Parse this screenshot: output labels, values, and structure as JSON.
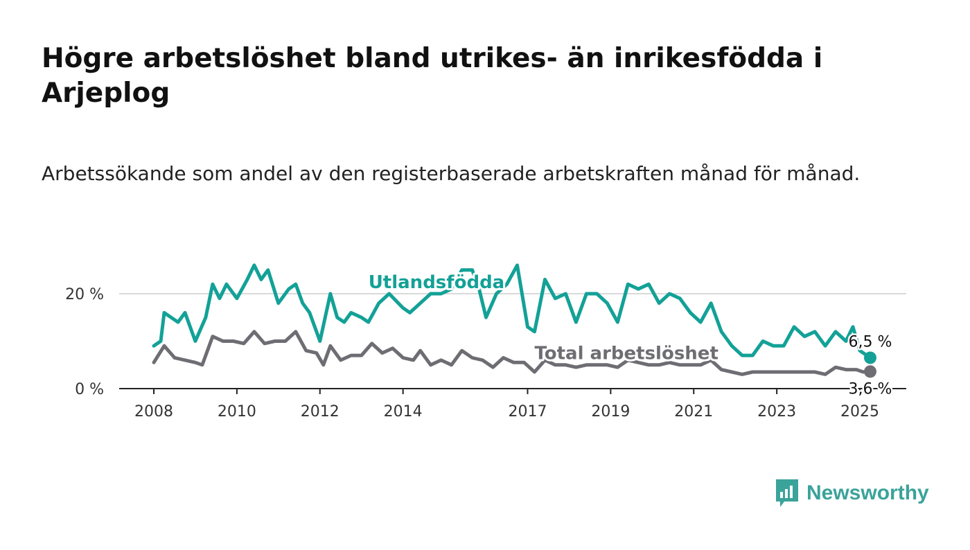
{
  "title": "Högre arbetslöshet bland utrikes- än inrikesfödda i Arjeplog",
  "subtitle": "Arbetssökande som andel av den registerbaserade arbetskraften månad för månad.",
  "brand": {
    "name": "Newsworthy",
    "color": "#3aa39a"
  },
  "chart_data": {
    "type": "line",
    "xlabel": "",
    "ylabel": "",
    "x_range": [
      "2008-01",
      "2025-04"
    ],
    "ylim": [
      0,
      27
    ],
    "y_ticks": [
      {
        "value": 0,
        "label": "0 %"
      },
      {
        "value": 20,
        "label": "20 %"
      }
    ],
    "x_ticks": [
      {
        "x": "2008-01",
        "label": "2008"
      },
      {
        "x": "2010-01",
        "label": "2010"
      },
      {
        "x": "2012-01",
        "label": "2012"
      },
      {
        "x": "2014-01",
        "label": "2014"
      },
      {
        "x": "2017-01",
        "label": "2017"
      },
      {
        "x": "2019-01",
        "label": "2019"
      },
      {
        "x": "2021-01",
        "label": "2021"
      },
      {
        "x": "2023-01",
        "label": "2023"
      },
      {
        "x": "2025-01",
        "label": "2025"
      }
    ],
    "grid": {
      "horizontal": true
    },
    "series": [
      {
        "name": "Utlandsfödda",
        "color": "#13a197",
        "end_label": "6,5 %",
        "points": [
          [
            "2008-01",
            9
          ],
          [
            "2008-03",
            10
          ],
          [
            "2008-04",
            16
          ],
          [
            "2008-06",
            15
          ],
          [
            "2008-08",
            14
          ],
          [
            "2008-10",
            16
          ],
          [
            "2009-01",
            10
          ],
          [
            "2009-04",
            15
          ],
          [
            "2009-06",
            22
          ],
          [
            "2009-08",
            19
          ],
          [
            "2009-10",
            22
          ],
          [
            "2010-01",
            19
          ],
          [
            "2010-04",
            23
          ],
          [
            "2010-06",
            26
          ],
          [
            "2010-08",
            23
          ],
          [
            "2010-10",
            25
          ],
          [
            "2011-01",
            18
          ],
          [
            "2011-04",
            21
          ],
          [
            "2011-06",
            22
          ],
          [
            "2011-08",
            18
          ],
          [
            "2011-10",
            16
          ],
          [
            "2012-01",
            10
          ],
          [
            "2012-04",
            20
          ],
          [
            "2012-06",
            15
          ],
          [
            "2012-08",
            14
          ],
          [
            "2012-10",
            16
          ],
          [
            "2013-01",
            15
          ],
          [
            "2013-03",
            14
          ],
          [
            "2013-06",
            18
          ],
          [
            "2013-09",
            20
          ],
          [
            "2014-01",
            17
          ],
          [
            "2014-03",
            16
          ],
          [
            "2014-06",
            18
          ],
          [
            "2014-09",
            20
          ],
          [
            "2014-12",
            20
          ],
          [
            "2015-03",
            21
          ],
          [
            "2015-06",
            25
          ],
          [
            "2015-09",
            25
          ],
          [
            "2015-11",
            21
          ],
          [
            "2016-01",
            15
          ],
          [
            "2016-04",
            20
          ],
          [
            "2016-07",
            22
          ],
          [
            "2016-10",
            26
          ],
          [
            "2017-01",
            13
          ],
          [
            "2017-03",
            12
          ],
          [
            "2017-06",
            23
          ],
          [
            "2017-09",
            19
          ],
          [
            "2017-12",
            20
          ],
          [
            "2018-03",
            14
          ],
          [
            "2018-06",
            20
          ],
          [
            "2018-09",
            20
          ],
          [
            "2018-12",
            18
          ],
          [
            "2019-03",
            14
          ],
          [
            "2019-06",
            22
          ],
          [
            "2019-09",
            21
          ],
          [
            "2019-12",
            22
          ],
          [
            "2020-03",
            18
          ],
          [
            "2020-06",
            20
          ],
          [
            "2020-09",
            19
          ],
          [
            "2020-12",
            16
          ],
          [
            "2021-03",
            14
          ],
          [
            "2021-06",
            18
          ],
          [
            "2021-09",
            12
          ],
          [
            "2021-12",
            9
          ],
          [
            "2022-03",
            7
          ],
          [
            "2022-06",
            7
          ],
          [
            "2022-09",
            10
          ],
          [
            "2022-12",
            9
          ],
          [
            "2023-03",
            9
          ],
          [
            "2023-06",
            13
          ],
          [
            "2023-09",
            11
          ],
          [
            "2023-12",
            12
          ],
          [
            "2024-03",
            9
          ],
          [
            "2024-06",
            12
          ],
          [
            "2024-09",
            10
          ],
          [
            "2024-11",
            13
          ],
          [
            "2025-01",
            8
          ],
          [
            "2025-04",
            6.5
          ]
        ]
      },
      {
        "name": "Total arbetslöshet",
        "color": "#6e6d73",
        "end_label": "3,6 %",
        "points": [
          [
            "2008-01",
            5.5
          ],
          [
            "2008-04",
            9
          ],
          [
            "2008-07",
            6.5
          ],
          [
            "2008-10",
            6
          ],
          [
            "2009-01",
            5.5
          ],
          [
            "2009-03",
            5
          ],
          [
            "2009-06",
            11
          ],
          [
            "2009-09",
            10
          ],
          [
            "2009-12",
            10
          ],
          [
            "2010-03",
            9.5
          ],
          [
            "2010-06",
            12
          ],
          [
            "2010-09",
            9.5
          ],
          [
            "2010-12",
            10
          ],
          [
            "2011-03",
            10
          ],
          [
            "2011-06",
            12
          ],
          [
            "2011-09",
            8
          ],
          [
            "2011-12",
            7.5
          ],
          [
            "2012-02",
            5
          ],
          [
            "2012-04",
            9
          ],
          [
            "2012-07",
            6
          ],
          [
            "2012-10",
            7
          ],
          [
            "2013-01",
            7
          ],
          [
            "2013-04",
            9.5
          ],
          [
            "2013-07",
            7.5
          ],
          [
            "2013-10",
            8.5
          ],
          [
            "2014-01",
            6.5
          ],
          [
            "2014-04",
            6
          ],
          [
            "2014-06",
            8
          ],
          [
            "2014-09",
            5
          ],
          [
            "2014-12",
            6
          ],
          [
            "2015-03",
            5
          ],
          [
            "2015-06",
            8
          ],
          [
            "2015-09",
            6.5
          ],
          [
            "2015-12",
            6
          ],
          [
            "2016-03",
            4.5
          ],
          [
            "2016-06",
            6.5
          ],
          [
            "2016-09",
            5.5
          ],
          [
            "2016-12",
            5.5
          ],
          [
            "2017-03",
            3.5
          ],
          [
            "2017-06",
            6
          ],
          [
            "2017-09",
            5
          ],
          [
            "2017-12",
            5
          ],
          [
            "2018-03",
            4.5
          ],
          [
            "2018-06",
            5
          ],
          [
            "2018-09",
            5
          ],
          [
            "2018-12",
            5
          ],
          [
            "2019-03",
            4.5
          ],
          [
            "2019-06",
            6
          ],
          [
            "2019-09",
            5.5
          ],
          [
            "2019-12",
            5
          ],
          [
            "2020-03",
            5
          ],
          [
            "2020-06",
            5.5
          ],
          [
            "2020-09",
            5
          ],
          [
            "2020-12",
            5
          ],
          [
            "2021-03",
            5
          ],
          [
            "2021-06",
            6
          ],
          [
            "2021-09",
            4
          ],
          [
            "2021-12",
            3.5
          ],
          [
            "2022-03",
            3
          ],
          [
            "2022-06",
            3.5
          ],
          [
            "2022-09",
            3.5
          ],
          [
            "2022-12",
            3.5
          ],
          [
            "2023-03",
            3.5
          ],
          [
            "2023-06",
            3.5
          ],
          [
            "2023-09",
            3.5
          ],
          [
            "2023-12",
            3.5
          ],
          [
            "2024-03",
            3
          ],
          [
            "2024-06",
            4.5
          ],
          [
            "2024-09",
            4
          ],
          [
            "2024-12",
            4
          ],
          [
            "2025-02",
            3.5
          ],
          [
            "2025-04",
            3.6
          ]
        ]
      }
    ],
    "annotations": [
      {
        "series": "Utlandsfödda",
        "text": "Utlandsfödda",
        "x": "2013-03",
        "y": 22.5
      },
      {
        "series": "Total arbetslöshet",
        "text": "Total arbetslöshet",
        "x": "2017-03",
        "y": 7.5
      }
    ]
  }
}
